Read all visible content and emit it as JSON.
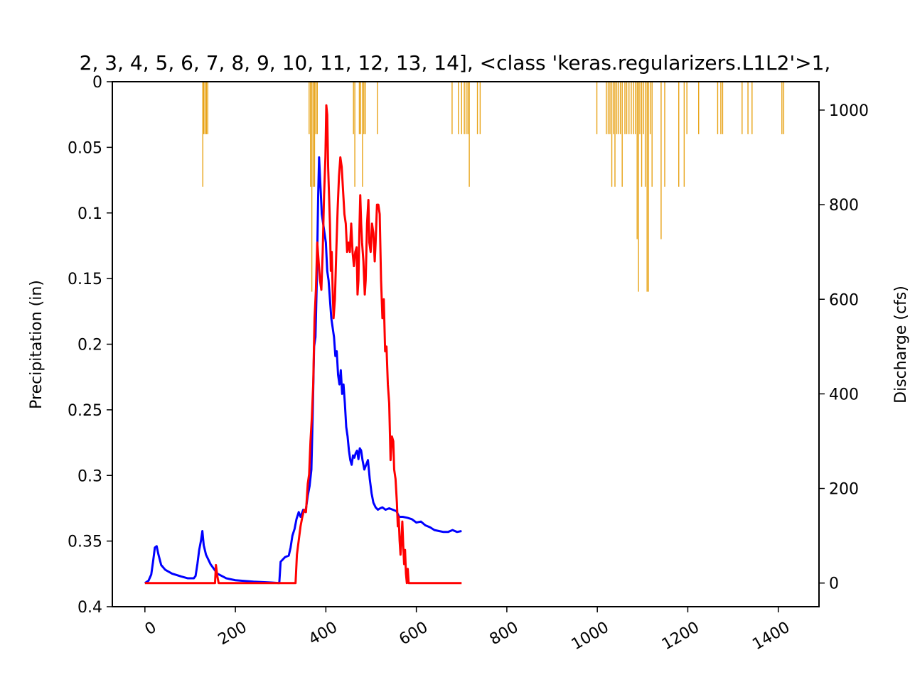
{
  "chart_data": {
    "type": "line",
    "title": "2, 3, 4, 5, 6, 7, 8, 9, 10, 11, 12, 13, 14], <class 'keras.regularizers.L1L2'>1,",
    "xlim": [
      -72,
      1490
    ],
    "x_ticks": [
      "0",
      "200",
      "400",
      "600",
      "800",
      "1000",
      "1200",
      "1400"
    ],
    "x_tick_values": [
      0,
      200,
      400,
      600,
      800,
      1000,
      1200,
      1400
    ],
    "left_axis": {
      "label": "Precipitation (in)",
      "inverted": true,
      "ylim": [
        0,
        0.4
      ],
      "ticks": [
        "0",
        "0.05",
        "0.1",
        "0.15",
        "0.2",
        "0.25",
        "0.3",
        "0.35",
        "0.4"
      ],
      "tick_values": [
        0,
        0.05,
        0.1,
        0.15,
        0.2,
        0.25,
        0.3,
        0.35,
        0.4
      ]
    },
    "right_axis": {
      "label": "Discharge (cfs)",
      "ylim": [
        -50,
        1060
      ],
      "ticks": [
        "0",
        "200",
        "400",
        "600",
        "800",
        "1000"
      ],
      "tick_values": [
        0,
        200,
        400,
        600,
        800,
        1000
      ]
    },
    "precipitation_bars": {
      "color": "#e8a317",
      "axis": "left",
      "points": [
        [
          128,
          0.08
        ],
        [
          130,
          0.04
        ],
        [
          133,
          0.04
        ],
        [
          136,
          0.04
        ],
        [
          139,
          0.04
        ],
        [
          363,
          0.04
        ],
        [
          366,
          0.08
        ],
        [
          369,
          0.16
        ],
        [
          372,
          0.08
        ],
        [
          375,
          0.08
        ],
        [
          378,
          0.04
        ],
        [
          381,
          0.04
        ],
        [
          461,
          0.04
        ],
        [
          464,
          0.08
        ],
        [
          474,
          0.04
        ],
        [
          477,
          0.04
        ],
        [
          481,
          0.08
        ],
        [
          484,
          0.04
        ],
        [
          487,
          0.04
        ],
        [
          514,
          0.04
        ],
        [
          679,
          0.04
        ],
        [
          693,
          0.04
        ],
        [
          700,
          0.04
        ],
        [
          706,
          0.04
        ],
        [
          710,
          0.04
        ],
        [
          714,
          0.04
        ],
        [
          717,
          0.08
        ],
        [
          735,
          0.04
        ],
        [
          741,
          0.04
        ],
        [
          999,
          0.04
        ],
        [
          1020,
          0.04
        ],
        [
          1024,
          0.04
        ],
        [
          1028,
          0.04
        ],
        [
          1032,
          0.08
        ],
        [
          1036,
          0.04
        ],
        [
          1039,
          0.08
        ],
        [
          1043,
          0.04
        ],
        [
          1047,
          0.04
        ],
        [
          1051,
          0.04
        ],
        [
          1055,
          0.08
        ],
        [
          1061,
          0.04
        ],
        [
          1065,
          0.04
        ],
        [
          1070,
          0.04
        ],
        [
          1075,
          0.04
        ],
        [
          1080,
          0.04
        ],
        [
          1084,
          0.04
        ],
        [
          1088,
          0.12
        ],
        [
          1091,
          0.16
        ],
        [
          1094,
          0.04
        ],
        [
          1098,
          0.08
        ],
        [
          1102,
          0.04
        ],
        [
          1106,
          0.08
        ],
        [
          1110,
          0.16
        ],
        [
          1113,
          0.16
        ],
        [
          1117,
          0.04
        ],
        [
          1121,
          0.08
        ],
        [
          1141,
          0.12
        ],
        [
          1149,
          0.08
        ],
        [
          1180,
          0.08
        ],
        [
          1192,
          0.08
        ],
        [
          1198,
          0.04
        ],
        [
          1224,
          0.04
        ],
        [
          1266,
          0.04
        ],
        [
          1273,
          0.04
        ],
        [
          1277,
          0.04
        ],
        [
          1320,
          0.04
        ],
        [
          1333,
          0.04
        ],
        [
          1342,
          0.04
        ],
        [
          1408,
          0.04
        ],
        [
          1412,
          0.04
        ]
      ]
    },
    "series": [
      {
        "color": "#0000ff",
        "axis": "right",
        "points": [
          [
            0,
            0
          ],
          [
            8,
            5
          ],
          [
            14,
            18
          ],
          [
            18,
            45
          ],
          [
            22,
            75
          ],
          [
            26,
            78
          ],
          [
            30,
            60
          ],
          [
            36,
            38
          ],
          [
            45,
            28
          ],
          [
            60,
            20
          ],
          [
            80,
            14
          ],
          [
            95,
            10
          ],
          [
            108,
            10
          ],
          [
            112,
            15
          ],
          [
            116,
            40
          ],
          [
            120,
            70
          ],
          [
            124,
            90
          ],
          [
            127,
            110
          ],
          [
            130,
            80
          ],
          [
            135,
            60
          ],
          [
            145,
            40
          ],
          [
            160,
            20
          ],
          [
            180,
            10
          ],
          [
            200,
            6
          ],
          [
            240,
            3
          ],
          [
            280,
            1
          ],
          [
            297,
            0
          ],
          [
            300,
            45
          ],
          [
            310,
            55
          ],
          [
            318,
            58
          ],
          [
            322,
            75
          ],
          [
            326,
            100
          ],
          [
            331,
            115
          ],
          [
            335,
            135
          ],
          [
            340,
            150
          ],
          [
            344,
            140
          ],
          [
            350,
            155
          ],
          [
            355,
            150
          ],
          [
            360,
            185
          ],
          [
            364,
            205
          ],
          [
            368,
            240
          ],
          [
            371,
            360
          ],
          [
            374,
            500
          ],
          [
            377,
            520
          ],
          [
            380,
            640
          ],
          [
            383,
            820
          ],
          [
            385,
            900
          ],
          [
            388,
            840
          ],
          [
            391,
            780
          ],
          [
            394,
            760
          ],
          [
            397,
            740
          ],
          [
            400,
            720
          ],
          [
            403,
            660
          ],
          [
            406,
            640
          ],
          [
            409,
            600
          ],
          [
            412,
            560
          ],
          [
            415,
            540
          ],
          [
            418,
            520
          ],
          [
            421,
            480
          ],
          [
            424,
            490
          ],
          [
            427,
            440
          ],
          [
            430,
            420
          ],
          [
            433,
            450
          ],
          [
            436,
            400
          ],
          [
            439,
            420
          ],
          [
            442,
            380
          ],
          [
            445,
            330
          ],
          [
            448,
            310
          ],
          [
            451,
            280
          ],
          [
            454,
            260
          ],
          [
            457,
            250
          ],
          [
            460,
            270
          ],
          [
            463,
            265
          ],
          [
            466,
            275
          ],
          [
            469,
            280
          ],
          [
            472,
            262
          ],
          [
            475,
            285
          ],
          [
            478,
            280
          ],
          [
            481,
            260
          ],
          [
            485,
            240
          ],
          [
            489,
            250
          ],
          [
            493,
            260
          ],
          [
            497,
            220
          ],
          [
            501,
            190
          ],
          [
            505,
            170
          ],
          [
            510,
            160
          ],
          [
            515,
            155
          ],
          [
            520,
            158
          ],
          [
            525,
            160
          ],
          [
            532,
            155
          ],
          [
            540,
            158
          ],
          [
            548,
            155
          ],
          [
            556,
            152
          ],
          [
            562,
            140
          ],
          [
            570,
            140
          ],
          [
            580,
            138
          ],
          [
            590,
            135
          ],
          [
            600,
            128
          ],
          [
            610,
            130
          ],
          [
            620,
            122
          ],
          [
            630,
            118
          ],
          [
            640,
            112
          ],
          [
            650,
            110
          ],
          [
            660,
            108
          ],
          [
            670,
            108
          ],
          [
            680,
            112
          ],
          [
            690,
            108
          ],
          [
            700,
            110
          ]
        ]
      },
      {
        "color": "#ff0000",
        "axis": "right",
        "points": [
          [
            0,
            0
          ],
          [
            155,
            0
          ],
          [
            157,
            38
          ],
          [
            160,
            15
          ],
          [
            163,
            0
          ],
          [
            333,
            0
          ],
          [
            336,
            60
          ],
          [
            340,
            90
          ],
          [
            344,
            120
          ],
          [
            348,
            140
          ],
          [
            352,
            155
          ],
          [
            356,
            150
          ],
          [
            360,
            210
          ],
          [
            363,
            230
          ],
          [
            366,
            300
          ],
          [
            369,
            350
          ],
          [
            372,
            420
          ],
          [
            375,
            560
          ],
          [
            378,
            620
          ],
          [
            381,
            720
          ],
          [
            384,
            680
          ],
          [
            387,
            640
          ],
          [
            390,
            620
          ],
          [
            393,
            700
          ],
          [
            396,
            820
          ],
          [
            399,
            900
          ],
          [
            401,
            1010
          ],
          [
            403,
            990
          ],
          [
            405,
            880
          ],
          [
            407,
            820
          ],
          [
            409,
            760
          ],
          [
            411,
            660
          ],
          [
            413,
            700
          ],
          [
            415,
            620
          ],
          [
            417,
            560
          ],
          [
            420,
            600
          ],
          [
            423,
            700
          ],
          [
            426,
            790
          ],
          [
            429,
            860
          ],
          [
            432,
            900
          ],
          [
            435,
            880
          ],
          [
            438,
            830
          ],
          [
            441,
            780
          ],
          [
            444,
            760
          ],
          [
            447,
            700
          ],
          [
            450,
            720
          ],
          [
            453,
            700
          ],
          [
            456,
            760
          ],
          [
            459,
            700
          ],
          [
            462,
            670
          ],
          [
            465,
            700
          ],
          [
            468,
            710
          ],
          [
            470,
            610
          ],
          [
            472,
            640
          ],
          [
            474,
            740
          ],
          [
            476,
            820
          ],
          [
            478,
            760
          ],
          [
            480,
            720
          ],
          [
            483,
            680
          ],
          [
            486,
            610
          ],
          [
            488,
            640
          ],
          [
            491,
            760
          ],
          [
            494,
            810
          ],
          [
            496,
            720
          ],
          [
            499,
            700
          ],
          [
            502,
            760
          ],
          [
            505,
            740
          ],
          [
            508,
            680
          ],
          [
            510,
            720
          ],
          [
            513,
            800
          ],
          [
            516,
            800
          ],
          [
            519,
            780
          ],
          [
            522,
            640
          ],
          [
            525,
            560
          ],
          [
            528,
            600
          ],
          [
            531,
            490
          ],
          [
            534,
            500
          ],
          [
            537,
            420
          ],
          [
            540,
            380
          ],
          [
            543,
            260
          ],
          [
            546,
            310
          ],
          [
            549,
            300
          ],
          [
            551,
            240
          ],
          [
            554,
            220
          ],
          [
            557,
            170
          ],
          [
            559,
            120
          ],
          [
            561,
            140
          ],
          [
            563,
            90
          ],
          [
            565,
            60
          ],
          [
            567,
            90
          ],
          [
            569,
            130
          ],
          [
            571,
            80
          ],
          [
            573,
            40
          ],
          [
            575,
            70
          ],
          [
            577,
            20
          ],
          [
            579,
            0
          ],
          [
            581,
            30
          ],
          [
            583,
            0
          ],
          [
            585,
            0
          ],
          [
            700,
            0
          ]
        ]
      }
    ]
  }
}
